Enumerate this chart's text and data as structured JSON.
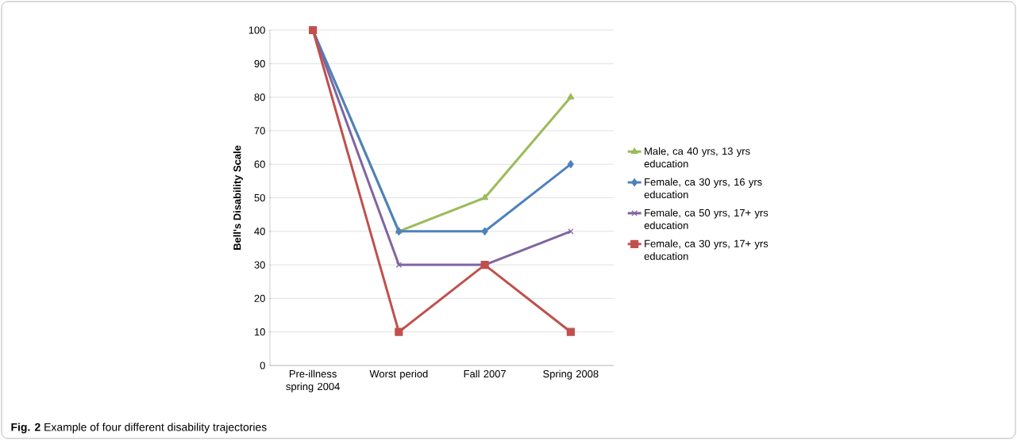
{
  "chart_data": {
    "type": "line",
    "ylabel": "Bell's Disability Scale",
    "categories": [
      "Pre-illness spring 2004",
      "Worst period",
      "Fall 2007",
      "Spring 2008"
    ],
    "series": [
      {
        "name": "Male, ca 40 yrs, 13 yrs education",
        "color": "#9bbb59",
        "marker": "triangle",
        "values": [
          100,
          40,
          50,
          80
        ]
      },
      {
        "name": "Female, ca 30 yrs, 16 yrs education",
        "color": "#4f81bd",
        "marker": "diamond",
        "values": [
          100,
          40,
          40,
          60
        ]
      },
      {
        "name": "Female, ca 50 yrs, 17+ yrs education",
        "color": "#8064a2",
        "marker": "cross",
        "values": [
          100,
          30,
          30,
          40
        ]
      },
      {
        "name": "Female, ca 30 yrs, 17+ yrs education",
        "color": "#c0504d",
        "marker": "square",
        "values": [
          100,
          10,
          30,
          10
        ]
      }
    ],
    "ylim": [
      0,
      100
    ],
    "yticks": [
      0,
      10,
      20,
      30,
      40,
      50,
      60,
      70,
      80,
      90,
      100
    ],
    "grid": "y",
    "legend": "right",
    "line_style": "solid",
    "annotations": [
      "**Fig. 2** Example of four different disability trajectories"
    ]
  }
}
